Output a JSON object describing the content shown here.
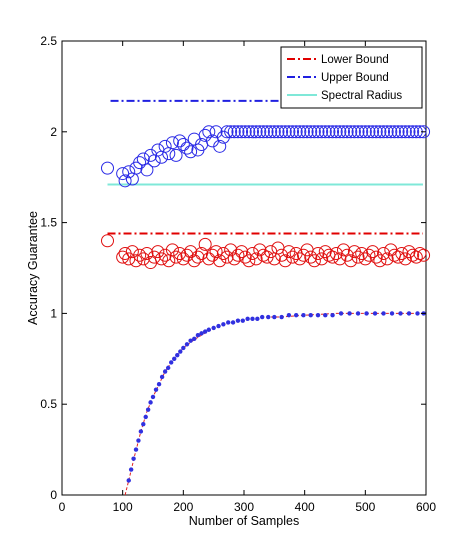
{
  "chart_data": {
    "type": "scatter",
    "xlabel": "Number of Samples",
    "ylabel": "Accuracy Guarantee",
    "xlim": [
      0,
      600
    ],
    "ylim": [
      0,
      2.5
    ],
    "xticks": [
      "0",
      "100",
      "200",
      "300",
      "400",
      "500",
      "600"
    ],
    "yticks": [
      "0",
      "0.5",
      "1",
      "1.5",
      "2",
      "2.5"
    ],
    "grid": false,
    "legend_position": "top-right",
    "series": [
      {
        "name": "Lower Bound",
        "style": "dash-dot",
        "color": "#e00000",
        "x": [
          75,
          595
        ],
        "y": [
          1.44,
          1.44
        ]
      },
      {
        "name": "Upper Bound",
        "style": "dash-dot",
        "color": "#2020e0",
        "x": [
          80,
          595
        ],
        "y": [
          2.17,
          2.17
        ]
      },
      {
        "name": "Spectral Radius",
        "style": "solid",
        "color": "#7fe8d8",
        "x": [
          75,
          595
        ],
        "y": [
          1.71,
          1.71
        ]
      }
    ],
    "blue_circles": {
      "color": "#2a2ae6",
      "x": [
        75,
        100,
        104,
        110,
        116,
        122,
        128,
        134,
        140,
        146,
        152,
        158,
        164,
        170,
        176,
        182,
        188,
        194,
        200,
        206,
        212,
        218,
        224,
        230,
        236,
        242,
        248,
        254,
        260,
        266,
        272,
        278,
        284,
        290,
        296,
        302,
        308,
        314,
        320,
        326,
        332,
        338,
        344,
        350,
        356,
        362,
        368,
        374,
        380,
        386,
        392,
        398,
        404,
        410,
        416,
        422,
        428,
        434,
        440,
        446,
        452,
        458,
        464,
        470,
        476,
        482,
        488,
        494,
        500,
        506,
        512,
        518,
        524,
        530,
        536,
        542,
        548,
        554,
        560,
        566,
        572,
        578,
        584,
        590,
        596
      ],
      "y": [
        1.8,
        1.77,
        1.73,
        1.78,
        1.74,
        1.8,
        1.83,
        1.85,
        1.79,
        1.87,
        1.84,
        1.9,
        1.86,
        1.92,
        1.88,
        1.94,
        1.87,
        1.95,
        1.93,
        1.91,
        1.89,
        1.96,
        1.9,
        1.93,
        1.98,
        2.0,
        1.95,
        2.0,
        1.92,
        1.97,
        2.0,
        2.0,
        2.0,
        2.0,
        2.0,
        2.0,
        2.0,
        2.0,
        2.0,
        2.0,
        2.0,
        2.0,
        2.0,
        2.0,
        2.0,
        2.0,
        2.0,
        2.0,
        2.0,
        2.0,
        2.0,
        2.0,
        2.0,
        2.0,
        2.0,
        2.0,
        2.0,
        2.0,
        2.0,
        2.0,
        2.0,
        2.0,
        2.0,
        2.0,
        2.0,
        2.0,
        2.0,
        2.0,
        2.0,
        2.0,
        2.0,
        2.0,
        2.0,
        2.0,
        2.0,
        2.0,
        2.0,
        2.0,
        2.0,
        2.0,
        2.0,
        2.0,
        2.0,
        2.0,
        2.0
      ]
    },
    "red_circles": {
      "color": "#e01010",
      "x": [
        75,
        100,
        104,
        110,
        116,
        122,
        128,
        134,
        140,
        146,
        152,
        158,
        164,
        170,
        176,
        182,
        188,
        194,
        200,
        206,
        212,
        218,
        224,
        230,
        236,
        242,
        248,
        254,
        260,
        266,
        272,
        278,
        284,
        290,
        296,
        302,
        308,
        314,
        320,
        326,
        332,
        338,
        344,
        350,
        356,
        362,
        368,
        374,
        380,
        386,
        392,
        398,
        404,
        410,
        416,
        422,
        428,
        434,
        440,
        446,
        452,
        458,
        464,
        470,
        476,
        482,
        488,
        494,
        500,
        506,
        512,
        518,
        524,
        530,
        536,
        542,
        548,
        554,
        560,
        566,
        572,
        578,
        584,
        590,
        596
      ],
      "y": [
        1.4,
        1.31,
        1.33,
        1.3,
        1.34,
        1.29,
        1.32,
        1.3,
        1.33,
        1.28,
        1.31,
        1.34,
        1.3,
        1.32,
        1.29,
        1.35,
        1.31,
        1.33,
        1.3,
        1.32,
        1.34,
        1.29,
        1.31,
        1.33,
        1.38,
        1.3,
        1.32,
        1.34,
        1.29,
        1.33,
        1.31,
        1.35,
        1.3,
        1.32,
        1.34,
        1.31,
        1.29,
        1.33,
        1.3,
        1.35,
        1.32,
        1.31,
        1.34,
        1.3,
        1.36,
        1.32,
        1.29,
        1.34,
        1.31,
        1.33,
        1.3,
        1.32,
        1.35,
        1.31,
        1.29,
        1.33,
        1.3,
        1.34,
        1.32,
        1.31,
        1.33,
        1.3,
        1.35,
        1.32,
        1.29,
        1.34,
        1.31,
        1.33,
        1.3,
        1.32,
        1.34,
        1.31,
        1.29,
        1.33,
        1.3,
        1.35,
        1.32,
        1.31,
        1.33,
        1.3,
        1.34,
        1.32,
        1.31,
        1.33,
        1.32
      ]
    },
    "growth_dots": {
      "color": "#3030e0",
      "x": [
        110,
        114,
        118,
        122,
        126,
        130,
        134,
        138,
        142,
        146,
        150,
        155,
        160,
        165,
        170,
        175,
        180,
        185,
        190,
        195,
        200,
        206,
        212,
        218,
        224,
        230,
        236,
        242,
        250,
        258,
        266,
        274,
        282,
        290,
        298,
        306,
        314,
        322,
        330,
        340,
        350,
        362,
        374,
        386,
        398,
        410,
        422,
        434,
        446,
        460,
        474,
        488,
        502,
        516,
        530,
        544,
        558,
        572,
        586,
        596
      ],
      "y": [
        0.08,
        0.14,
        0.2,
        0.25,
        0.3,
        0.35,
        0.39,
        0.43,
        0.47,
        0.51,
        0.54,
        0.58,
        0.61,
        0.65,
        0.68,
        0.7,
        0.73,
        0.75,
        0.77,
        0.79,
        0.81,
        0.83,
        0.85,
        0.86,
        0.88,
        0.89,
        0.9,
        0.91,
        0.92,
        0.93,
        0.94,
        0.95,
        0.95,
        0.96,
        0.96,
        0.97,
        0.97,
        0.97,
        0.98,
        0.98,
        0.98,
        0.98,
        0.99,
        0.99,
        0.99,
        0.99,
        0.99,
        0.99,
        0.99,
        1.0,
        1.0,
        1.0,
        1.0,
        1.0,
        1.0,
        1.0,
        1.0,
        1.0,
        1.0,
        1.0
      ]
    },
    "growth_curve": {
      "color": "#e02020",
      "style": "dashed",
      "x": [
        104,
        110,
        120,
        130,
        140,
        150,
        160,
        170,
        180,
        190,
        200,
        220,
        240,
        260,
        280,
        300,
        330,
        360,
        400,
        450,
        500,
        550,
        596
      ],
      "y": [
        0.0,
        0.08,
        0.22,
        0.35,
        0.46,
        0.54,
        0.61,
        0.68,
        0.73,
        0.77,
        0.81,
        0.86,
        0.9,
        0.93,
        0.95,
        0.96,
        0.98,
        0.98,
        0.99,
        1.0,
        1.0,
        1.0,
        1.0
      ]
    }
  }
}
